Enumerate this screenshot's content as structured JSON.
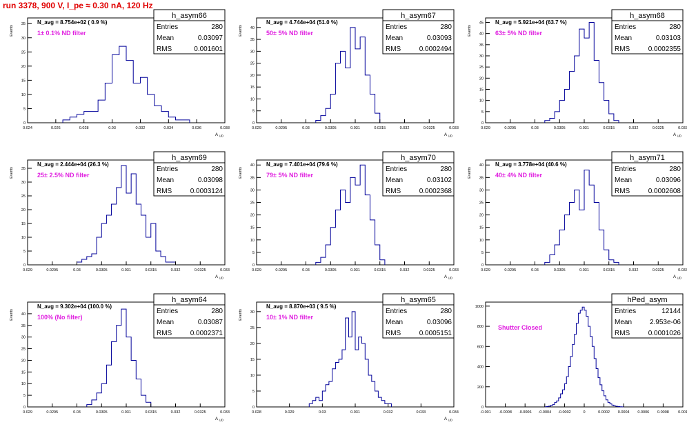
{
  "run_title": "run 3378,   900 V, I_pe ≈ 0.30 nA, 120 Hz",
  "chart_data": [
    {
      "type": "histogram",
      "name": "h_asym66",
      "ylabel": "Events",
      "xlabel": "A_UD",
      "navg_label": "N_avg = 8.754e+02 ( 0.9 %)",
      "filter_label": "1± 0.1% ND filter",
      "stats": [
        [
          "Entries",
          "280"
        ],
        [
          "Mean",
          "0.03097"
        ],
        [
          "RMS",
          "0.001601"
        ]
      ],
      "xlim": [
        0.024,
        0.038
      ],
      "ylim": [
        0,
        37
      ],
      "xticks": [
        0.024,
        0.026,
        0.028,
        0.03,
        0.032,
        0.034,
        0.036,
        0.038
      ],
      "xtick_labels": [
        "0.024",
        "0.026",
        "0.028",
        "0.03",
        "0.032",
        "0.034",
        "0.036",
        "0.038"
      ],
      "yticks": [
        0,
        5,
        10,
        15,
        20,
        25,
        30,
        35
      ],
      "bin_edges": [
        0.0265,
        0.027,
        0.0275,
        0.028,
        0.0285,
        0.029,
        0.0295,
        0.03,
        0.0305,
        0.031,
        0.0315,
        0.032,
        0.0325,
        0.033,
        0.0335,
        0.034,
        0.0345,
        0.035,
        0.0355
      ],
      "counts": [
        1,
        2,
        3,
        4,
        4,
        8,
        14,
        24,
        27,
        22,
        14,
        16,
        10,
        6,
        4,
        2,
        1,
        1
      ]
    },
    {
      "type": "histogram",
      "name": "h_asym67",
      "ylabel": "Events",
      "xlabel": "A_UD",
      "navg_label": "N_avg = 4.744e+04 (51.0 %)",
      "filter_label": "50± 5% ND filter",
      "stats": [
        [
          "Entries",
          "280"
        ],
        [
          "Mean",
          "0.03093"
        ],
        [
          "RMS",
          "0.0002494"
        ]
      ],
      "xlim": [
        0.029,
        0.033
      ],
      "ylim": [
        0,
        44
      ],
      "xticks": [
        0.029,
        0.0295,
        0.03,
        0.0305,
        0.031,
        0.0315,
        0.032,
        0.0325,
        0.033
      ],
      "xtick_labels": [
        "0.029",
        "0.0295",
        "0.03",
        "0.0305",
        "0.031",
        "0.0315",
        "0.032",
        "0.0325",
        "0.033"
      ],
      "yticks": [
        0,
        5,
        10,
        15,
        20,
        25,
        30,
        35,
        40
      ],
      "bin_edges": [
        0.0302,
        0.0303,
        0.0304,
        0.0305,
        0.0306,
        0.0307,
        0.0308,
        0.0309,
        0.031,
        0.0311,
        0.0312,
        0.0313,
        0.0314,
        0.0315
      ],
      "counts": [
        1,
        3,
        6,
        12,
        25,
        30,
        23,
        40,
        31,
        36,
        20,
        12,
        4
      ]
    },
    {
      "type": "histogram",
      "name": "h_asym68",
      "ylabel": "Events",
      "xlabel": "A_UD",
      "navg_label": "N_avg = 5.921e+04 (63.7 %)",
      "filter_label": "63± 5% ND filter",
      "stats": [
        [
          "Entries",
          "280"
        ],
        [
          "Mean",
          "0.03103"
        ],
        [
          "RMS",
          "0.0002355"
        ]
      ],
      "xlim": [
        0.029,
        0.033
      ],
      "ylim": [
        0,
        47
      ],
      "xticks": [
        0.029,
        0.0295,
        0.03,
        0.0305,
        0.031,
        0.0315,
        0.032,
        0.0325,
        0.033
      ],
      "xtick_labels": [
        "0.029",
        "0.0295",
        "0.03",
        "0.0305",
        "0.031",
        "0.0315",
        "0.032",
        "0.0325",
        "0.033"
      ],
      "yticks": [
        0,
        5,
        10,
        15,
        20,
        25,
        30,
        35,
        40,
        45
      ],
      "bin_edges": [
        0.0302,
        0.0303,
        0.0304,
        0.0305,
        0.0306,
        0.0307,
        0.0308,
        0.0309,
        0.031,
        0.0311,
        0.0312,
        0.0313,
        0.0314,
        0.0315,
        0.0316,
        0.0317
      ],
      "counts": [
        1,
        2,
        5,
        10,
        15,
        23,
        30,
        42,
        38,
        45,
        28,
        18,
        10,
        4,
        1
      ]
    },
    {
      "type": "histogram",
      "name": "h_asym69",
      "ylabel": "Events",
      "xlabel": "A_UD",
      "navg_label": "N_avg = 2.444e+04 (26.3 %)",
      "filter_label": "25± 2.5% ND filter",
      "stats": [
        [
          "Entries",
          "280"
        ],
        [
          "Mean",
          "0.03098"
        ],
        [
          "RMS",
          "0.0003124"
        ]
      ],
      "xlim": [
        0.029,
        0.033
      ],
      "ylim": [
        0,
        38
      ],
      "xticks": [
        0.029,
        0.0295,
        0.03,
        0.0305,
        0.031,
        0.0315,
        0.032,
        0.0325,
        0.033
      ],
      "xtick_labels": [
        "0.029",
        "0.0295",
        "0.03",
        "0.0305",
        "0.031",
        "0.0315",
        "0.032",
        "0.0325",
        "0.033"
      ],
      "yticks": [
        0,
        5,
        10,
        15,
        20,
        25,
        30,
        35
      ],
      "bin_edges": [
        0.03,
        0.0301,
        0.0302,
        0.0303,
        0.0304,
        0.0305,
        0.0306,
        0.0307,
        0.0308,
        0.0309,
        0.031,
        0.0311,
        0.0312,
        0.0313,
        0.0314,
        0.0315,
        0.0316,
        0.0317,
        0.0318,
        0.0319,
        0.032
      ],
      "counts": [
        1,
        2,
        3,
        4,
        10,
        15,
        18,
        22,
        28,
        36,
        26,
        33,
        22,
        18,
        10,
        15,
        5,
        3,
        1,
        1
      ]
    },
    {
      "type": "histogram",
      "name": "h_asym70",
      "ylabel": "Events",
      "xlabel": "A_UD",
      "navg_label": "N_avg = 7.401e+04 (79.6 %)",
      "filter_label": "79± 5% ND filter",
      "stats": [
        [
          "Entries",
          "280"
        ],
        [
          "Mean",
          "0.03102"
        ],
        [
          "RMS",
          "0.0002368"
        ]
      ],
      "xlim": [
        0.029,
        0.033
      ],
      "ylim": [
        0,
        42
      ],
      "xticks": [
        0.029,
        0.0295,
        0.03,
        0.0305,
        0.031,
        0.0315,
        0.032,
        0.0325,
        0.033
      ],
      "xtick_labels": [
        "0.029",
        "0.0295",
        "0.03",
        "0.0305",
        "0.031",
        "0.0315",
        "0.032",
        "0.0325",
        "0.033"
      ],
      "yticks": [
        0,
        5,
        10,
        15,
        20,
        25,
        30,
        35,
        40
      ],
      "bin_edges": [
        0.0302,
        0.0303,
        0.0304,
        0.0305,
        0.0306,
        0.0307,
        0.0308,
        0.0309,
        0.031,
        0.0311,
        0.0312,
        0.0313,
        0.0314,
        0.0315,
        0.0316
      ],
      "counts": [
        1,
        3,
        8,
        15,
        22,
        30,
        25,
        35,
        32,
        40,
        28,
        18,
        8,
        2
      ]
    },
    {
      "type": "histogram",
      "name": "h_asym71",
      "ylabel": "Events",
      "xlabel": "A_UD",
      "navg_label": "N_avg = 3.778e+04 (40.6 %)",
      "filter_label": "40± 4% ND filter",
      "stats": [
        [
          "Entries",
          "280"
        ],
        [
          "Mean",
          "0.03096"
        ],
        [
          "RMS",
          "0.0002608"
        ]
      ],
      "xlim": [
        0.029,
        0.033
      ],
      "ylim": [
        0,
        42
      ],
      "xticks": [
        0.029,
        0.0295,
        0.03,
        0.0305,
        0.031,
        0.0315,
        0.032,
        0.0325,
        0.033
      ],
      "xtick_labels": [
        "0.029",
        "0.0295",
        "0.03",
        "0.0305",
        "0.031",
        "0.0315",
        "0.032",
        "0.0325",
        "0.033"
      ],
      "yticks": [
        0,
        5,
        10,
        15,
        20,
        25,
        30,
        35,
        40
      ],
      "bin_edges": [
        0.0302,
        0.0303,
        0.0304,
        0.0305,
        0.0306,
        0.0307,
        0.0308,
        0.0309,
        0.031,
        0.0311,
        0.0312,
        0.0313,
        0.0314,
        0.0315,
        0.0316,
        0.0317
      ],
      "counts": [
        1,
        4,
        8,
        14,
        20,
        25,
        30,
        22,
        38,
        32,
        25,
        14,
        6,
        2,
        1
      ]
    },
    {
      "type": "histogram",
      "name": "h_asym64",
      "ylabel": "Events",
      "xlabel": "A_UD",
      "navg_label": "N_avg = 9.302e+04 (100.0 %)",
      "filter_label": "100% (No filter)",
      "stats": [
        [
          "Entries",
          "280"
        ],
        [
          "Mean",
          "0.03087"
        ],
        [
          "RMS",
          "0.0002371"
        ]
      ],
      "xlim": [
        0.029,
        0.033
      ],
      "ylim": [
        0,
        45
      ],
      "xticks": [
        0.029,
        0.0295,
        0.03,
        0.0305,
        0.031,
        0.0315,
        0.032,
        0.0325,
        0.033
      ],
      "xtick_labels": [
        "0.029",
        "0.0295",
        "0.03",
        "0.0305",
        "0.031",
        "0.0315",
        "0.032",
        "0.0325",
        "0.033"
      ],
      "yticks": [
        0,
        5,
        10,
        15,
        20,
        25,
        30,
        35,
        40
      ],
      "bin_edges": [
        0.0302,
        0.0303,
        0.0304,
        0.0305,
        0.0306,
        0.0307,
        0.0308,
        0.0309,
        0.031,
        0.0311,
        0.0312,
        0.0313,
        0.0314,
        0.0315
      ],
      "counts": [
        1,
        3,
        6,
        10,
        18,
        28,
        35,
        42,
        30,
        20,
        12,
        5,
        2
      ]
    },
    {
      "type": "histogram",
      "name": "h_asym65",
      "ylabel": "Events",
      "xlabel": "A_UD",
      "navg_label": "N_avg = 8.870e+03 ( 9.5 %)",
      "filter_label": "10± 1% ND filter",
      "stats": [
        [
          "Entries",
          "280"
        ],
        [
          "Mean",
          "0.03096"
        ],
        [
          "RMS",
          "0.0005151"
        ]
      ],
      "xlim": [
        0.028,
        0.034
      ],
      "ylim": [
        0,
        33
      ],
      "xticks": [
        0.028,
        0.029,
        0.03,
        0.031,
        0.032,
        0.033,
        0.034
      ],
      "xtick_labels": [
        "0.028",
        "0.029",
        "0.03",
        "0.031",
        "0.032",
        "0.033",
        "0.034"
      ],
      "yticks": [
        0,
        5,
        10,
        15,
        20,
        25,
        30
      ],
      "bin_edges": [
        0.0296,
        0.0297,
        0.0298,
        0.0299,
        0.03,
        0.0301,
        0.0302,
        0.0303,
        0.0304,
        0.0305,
        0.0306,
        0.0307,
        0.0308,
        0.0309,
        0.031,
        0.0311,
        0.0312,
        0.0313,
        0.0314,
        0.0315,
        0.0316,
        0.0317,
        0.0318,
        0.0319,
        0.032,
        0.0321
      ],
      "counts": [
        1,
        2,
        3,
        2,
        5,
        7,
        8,
        12,
        14,
        15,
        18,
        28,
        22,
        30,
        18,
        22,
        20,
        15,
        10,
        8,
        5,
        3,
        2,
        1,
        1
      ]
    },
    {
      "type": "histogram",
      "name": "hPed_asym",
      "ylabel": "",
      "xlabel": "",
      "navg_label": "",
      "filter_label": "Shutter Closed",
      "stats": [
        [
          "Entries",
          "12144"
        ],
        [
          "Mean",
          "2.953e-06"
        ],
        [
          "RMS",
          "0.0001026"
        ]
      ],
      "xlim": [
        -0.001,
        0.001
      ],
      "ylim": [
        0,
        1040
      ],
      "xticks": [
        -0.001,
        -0.0008,
        -0.0006,
        -0.0004,
        -0.0002,
        0,
        0.0002,
        0.0004,
        0.0006,
        0.0008,
        0.001
      ],
      "xtick_labels": [
        "-0.001",
        "-0.0008",
        "-0.0006",
        "-0.0004",
        "-0.0002",
        "0",
        "0.0002",
        "0.0004",
        "0.0006",
        "0.0008",
        "0.001"
      ],
      "yticks": [
        0,
        200,
        400,
        600,
        800,
        1000
      ],
      "bin_edges": [
        -0.0004,
        -0.00038,
        -0.00036,
        -0.00034,
        -0.00032,
        -0.0003,
        -0.00028,
        -0.00026,
        -0.00024,
        -0.00022,
        -0.0002,
        -0.00018,
        -0.00016,
        -0.00014,
        -0.00012,
        -0.0001,
        -8e-05,
        -6e-05,
        -4e-05,
        -2e-05,
        0,
        2e-05,
        4e-05,
        6e-05,
        8e-05,
        0.0001,
        0.00012,
        0.00014,
        0.00016,
        0.00018,
        0.0002,
        0.00022,
        0.00024,
        0.00026,
        0.00028,
        0.0003,
        0.00032,
        0.00034,
        0.00036,
        0.00038,
        0.0004
      ],
      "counts": [
        2,
        4,
        8,
        15,
        25,
        45,
        60,
        90,
        130,
        170,
        230,
        300,
        400,
        500,
        620,
        720,
        830,
        930,
        960,
        990,
        960,
        900,
        800,
        700,
        600,
        480,
        380,
        290,
        220,
        160,
        110,
        70,
        45,
        30,
        18,
        10,
        6,
        3,
        2,
        1
      ]
    }
  ]
}
